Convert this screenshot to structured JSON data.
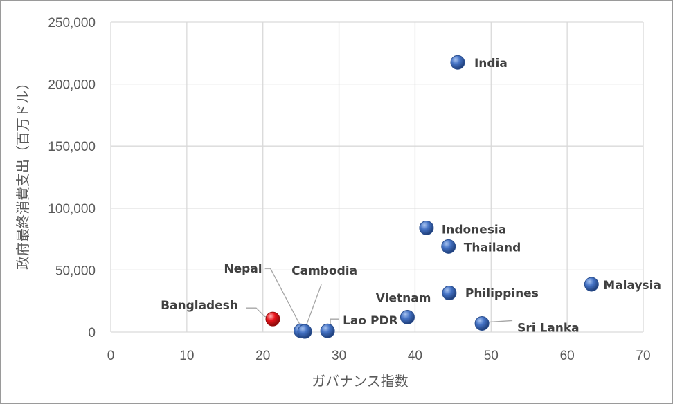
{
  "chart_data": {
    "type": "scatter",
    "xlabel": "ガバナンス指数",
    "ylabel": "政府最終消費支出（百万ドル）",
    "xlim": [
      0,
      70
    ],
    "ylim": [
      0,
      250000
    ],
    "x_ticks": [
      0,
      10,
      20,
      30,
      40,
      50,
      60,
      70
    ],
    "y_ticks": [
      0,
      50000,
      100000,
      150000,
      200000,
      250000
    ],
    "x_tick_labels": [
      "0",
      "10",
      "20",
      "30",
      "40",
      "50",
      "60",
      "70"
    ],
    "y_tick_labels": [
      "0",
      "50,000",
      "100,000",
      "150,000",
      "200,000",
      "250,000"
    ],
    "grid": true,
    "legend": "none",
    "colors": {
      "default": "#4472c4",
      "highlight": "#e8141b",
      "grid": "#d9d9d9"
    },
    "points": [
      {
        "label": "India",
        "x": 45.6,
        "y": 217500,
        "color": "#4472c4"
      },
      {
        "label": "Indonesia",
        "x": 41.5,
        "y": 84000,
        "color": "#4472c4"
      },
      {
        "label": "Thailand",
        "x": 44.4,
        "y": 69000,
        "color": "#4472c4"
      },
      {
        "label": "Malaysia",
        "x": 63.2,
        "y": 38500,
        "color": "#4472c4"
      },
      {
        "label": "Philippines",
        "x": 44.5,
        "y": 31500,
        "color": "#4472c4"
      },
      {
        "label": "Vietnam",
        "x": 39.0,
        "y": 12000,
        "color": "#4472c4"
      },
      {
        "label": "Sri Lanka",
        "x": 48.8,
        "y": 7000,
        "color": "#4472c4"
      },
      {
        "label": "Lao PDR",
        "x": 28.5,
        "y": 1000,
        "color": "#4472c4"
      },
      {
        "label": "Nepal",
        "x": 25.0,
        "y": 1000,
        "color": "#4472c4"
      },
      {
        "label": "Cambodia",
        "x": 25.5,
        "y": 500,
        "color": "#4472c4"
      },
      {
        "label": "Bangladesh",
        "x": 21.3,
        "y": 10500,
        "color": "#e8141b"
      }
    ]
  }
}
